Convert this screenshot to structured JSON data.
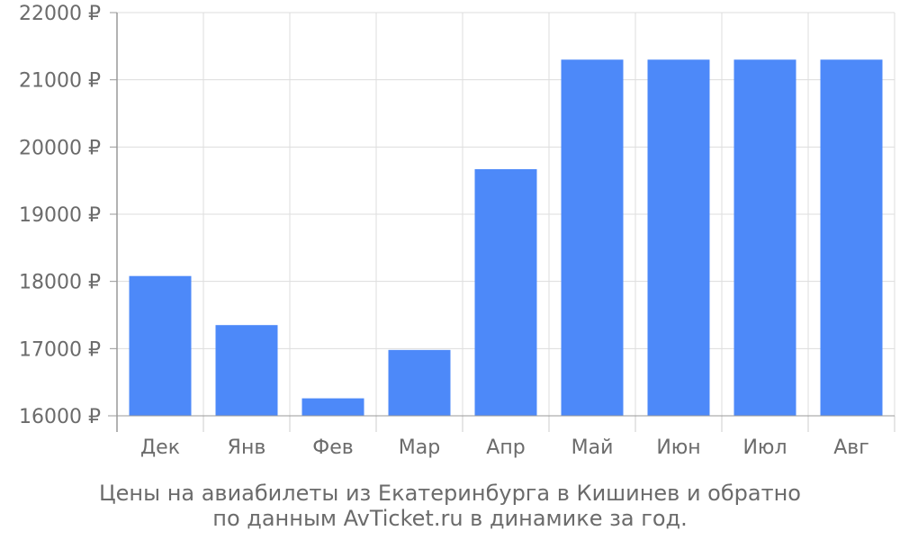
{
  "chart_data": {
    "type": "bar",
    "categories": [
      "Дек",
      "Янв",
      "Фев",
      "Мар",
      "Апр",
      "Май",
      "Июн",
      "Июл",
      "Авг"
    ],
    "values": [
      18080,
      17350,
      16260,
      16980,
      19670,
      21300,
      21300,
      21300,
      21300
    ],
    "ylim": [
      16000,
      22000
    ],
    "yticks": [
      16000,
      17000,
      18000,
      19000,
      20000,
      21000,
      22000
    ],
    "ytick_labels": [
      "16000 ₽",
      "17000 ₽",
      "18000 ₽",
      "19000 ₽",
      "20000 ₽",
      "21000 ₽",
      "22000 ₽"
    ],
    "grid": true,
    "bar_color": "#4d89f9",
    "caption_line1": "Цены на авиабилеты из Екатеринбурга в Кишинев и обратно",
    "caption_line2": "по данным AvTicket.ru в динамике за год."
  }
}
